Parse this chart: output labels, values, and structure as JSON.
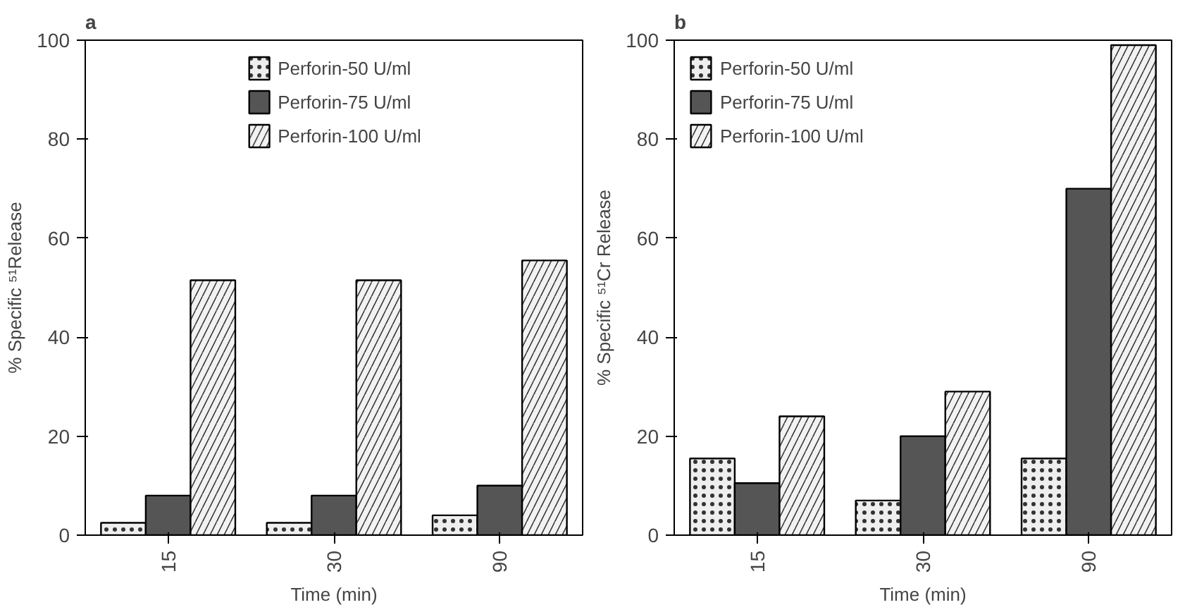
{
  "chart_data": [
    {
      "type": "bar",
      "title": "a",
      "xlabel": "Time (min)",
      "ylabel": "% Specific ⁵¹Release",
      "categories": [
        "15",
        "30",
        "90"
      ],
      "ylim": [
        0,
        100
      ],
      "yticks": [
        0,
        20,
        40,
        60,
        80,
        100
      ],
      "legend": "top",
      "grid": false,
      "series": [
        {
          "name": "Perforin-50 U/ml",
          "color": "#eeeeee",
          "values": [
            2.5,
            2.5,
            4
          ]
        },
        {
          "name": "Perforin-75 U/ml",
          "color": "#555555",
          "values": [
            8,
            8,
            10
          ]
        },
        {
          "name": "Perforin-100 U/ml",
          "color": "#f2f2f2",
          "values": [
            51.5,
            51.5,
            55.5
          ]
        }
      ]
    },
    {
      "type": "bar",
      "title": "b",
      "xlabel": "Time (min)",
      "ylabel": "% Specific ⁵¹Cr Release",
      "categories": [
        "15",
        "30",
        "90"
      ],
      "ylim": [
        0,
        100
      ],
      "yticks": [
        0,
        20,
        40,
        60,
        80,
        100
      ],
      "legend": "top left",
      "grid": false,
      "series": [
        {
          "name": "Perforin-50 U/ml",
          "color": "#eeeeee",
          "values": [
            15.5,
            7,
            15.5
          ]
        },
        {
          "name": "Perforin-75 U/ml",
          "color": "#555555",
          "values": [
            10.5,
            20,
            70
          ]
        },
        {
          "name": "Perforin-100 U/ml",
          "color": "#f2f2f2",
          "values": [
            24,
            29,
            99
          ]
        }
      ]
    }
  ]
}
